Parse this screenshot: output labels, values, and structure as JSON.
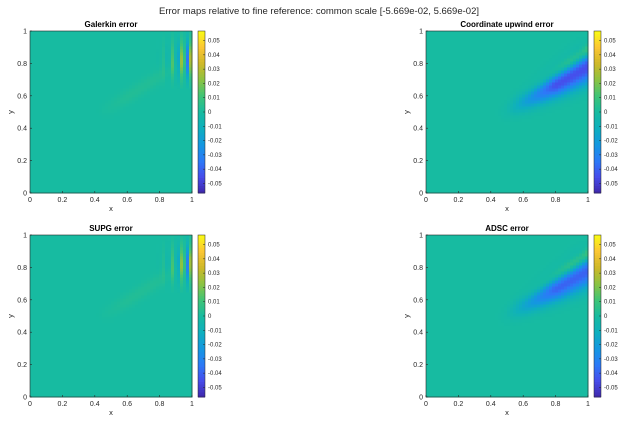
{
  "figure": {
    "suptitle": "Error maps relative to fine reference: common scale [-5.669e-02, 5.669e-02]"
  },
  "colormap": "parula",
  "chart_data": [
    {
      "type": "heatmap",
      "title": "Galerkin error",
      "xlabel": "x",
      "ylabel": "y",
      "xlim": [
        0,
        1
      ],
      "ylim": [
        0,
        1
      ],
      "xticks": [
        "0",
        "0.2",
        "0.4",
        "0.6",
        "0.8",
        "1"
      ],
      "yticks": [
        "0",
        "0.2",
        "0.4",
        "0.6",
        "0.8",
        "1"
      ],
      "clim": [
        -0.05669,
        0.05669
      ],
      "colorbar_ticks": [
        "0.05",
        "0.04",
        "0.03",
        "0.02",
        "0.01",
        "0",
        "-0.01",
        "-0.02",
        "-0.03",
        "-0.04",
        "-0.05"
      ],
      "pattern": "oscillation",
      "features": {
        "oscillation_x_range": [
          0.75,
          1.0
        ],
        "oscillation_y_range": [
          0.7,
          0.95
        ],
        "peak": 0.05,
        "faint_band_from": [
          0.45,
          0.5
        ],
        "faint_band_to": [
          1.0,
          0.85
        ]
      }
    },
    {
      "type": "heatmap",
      "title": "Coordinate upwind error",
      "xlabel": "x",
      "ylabel": "y",
      "xlim": [
        0,
        1
      ],
      "ylim": [
        0,
        1
      ],
      "xticks": [
        "0",
        "0.2",
        "0.4",
        "0.6",
        "0.8",
        "1"
      ],
      "yticks": [
        "0",
        "0.2",
        "0.4",
        "0.6",
        "0.8",
        "1"
      ],
      "clim": [
        -0.05669,
        0.05669
      ],
      "colorbar_ticks": [
        "0.05",
        "0.04",
        "0.03",
        "0.02",
        "0.01",
        "0",
        "-0.01",
        "-0.02",
        "-0.03",
        "-0.04",
        "-0.05"
      ],
      "pattern": "diffusion",
      "features": {
        "negative_band_from": [
          0.5,
          0.5
        ],
        "negative_band_to": [
          1.0,
          0.78
        ],
        "min": -0.045,
        "positive_band_offset_y": 0.1,
        "max": 0.02
      }
    },
    {
      "type": "heatmap",
      "title": "SUPG error",
      "xlabel": "x",
      "ylabel": "y",
      "xlim": [
        0,
        1
      ],
      "ylim": [
        0,
        1
      ],
      "xticks": [
        "0",
        "0.2",
        "0.4",
        "0.6",
        "0.8",
        "1"
      ],
      "yticks": [
        "0",
        "0.2",
        "0.4",
        "0.6",
        "0.8",
        "1"
      ],
      "clim": [
        -0.05669,
        0.05669
      ],
      "colorbar_ticks": [
        "0.05",
        "0.04",
        "0.03",
        "0.02",
        "0.01",
        "0",
        "-0.01",
        "-0.02",
        "-0.03",
        "-0.04",
        "-0.05"
      ],
      "pattern": "oscillation",
      "features": {
        "oscillation_x_range": [
          0.75,
          1.0
        ],
        "oscillation_y_range": [
          0.7,
          0.95
        ],
        "peak": 0.045,
        "faint_band_from": [
          0.45,
          0.5
        ],
        "faint_band_to": [
          1.0,
          0.85
        ]
      }
    },
    {
      "type": "heatmap",
      "title": "ADSC error",
      "xlabel": "x",
      "ylabel": "y",
      "xlim": [
        0,
        1
      ],
      "ylim": [
        0,
        1
      ],
      "xticks": [
        "0",
        "0.2",
        "0.4",
        "0.6",
        "0.8",
        "1"
      ],
      "yticks": [
        "0",
        "0.2",
        "0.4",
        "0.6",
        "0.8",
        "1"
      ],
      "clim": [
        -0.05669,
        0.05669
      ],
      "colorbar_ticks": [
        "0.05",
        "0.04",
        "0.03",
        "0.02",
        "0.01",
        "0",
        "-0.01",
        "-0.02",
        "-0.03",
        "-0.04",
        "-0.05"
      ],
      "pattern": "diffusion",
      "features": {
        "negative_band_from": [
          0.5,
          0.5
        ],
        "negative_band_to": [
          1.0,
          0.78
        ],
        "min": -0.04,
        "positive_band_offset_y": 0.1,
        "max": 0.02
      }
    }
  ]
}
